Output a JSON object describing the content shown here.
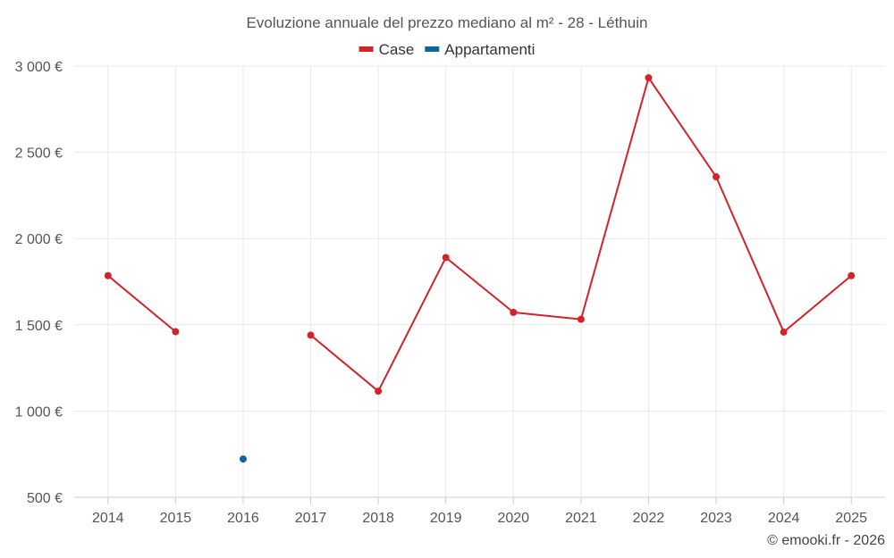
{
  "chart_data": {
    "type": "line",
    "title": "Evoluzione annuale del prezzo mediano al m² - 28 - Léthuin",
    "categories": [
      "2014",
      "2015",
      "2016",
      "2017",
      "2018",
      "2019",
      "2020",
      "2021",
      "2022",
      "2023",
      "2024",
      "2025"
    ],
    "series": [
      {
        "name": "Case",
        "color": "#d3232a",
        "values": [
          1785,
          1460,
          null,
          1440,
          1115,
          1890,
          1572,
          1532,
          2932,
          2358,
          1458,
          1785
        ]
      },
      {
        "name": "Appartamenti",
        "color": "#0e64a0",
        "values": [
          null,
          null,
          722,
          null,
          null,
          null,
          null,
          null,
          null,
          null,
          null,
          null
        ]
      }
    ],
    "ylim": [
      500,
      3000
    ],
    "yticks": [
      500,
      1000,
      1500,
      2000,
      2500,
      3000
    ],
    "ytick_labels": [
      "500 €",
      "1 000 €",
      "1 500 €",
      "2 000 €",
      "2 500 €",
      "3 000 €"
    ],
    "grid": true,
    "legend": "top-center",
    "xlabel": "",
    "ylabel": ""
  },
  "credit": "© emooki.fr - 2026"
}
